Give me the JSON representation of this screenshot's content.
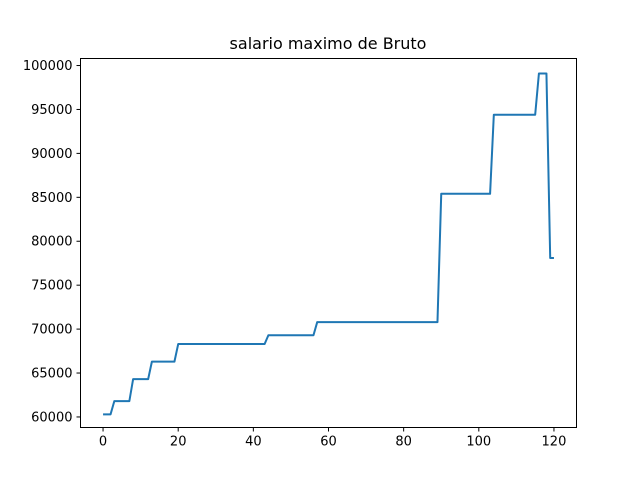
{
  "chart_data": {
    "type": "line",
    "title": "salario maximo de Bruto",
    "xlabel": "",
    "ylabel": "",
    "xlim": [
      -6,
      126
    ],
    "ylim": [
      58800,
      100800
    ],
    "xticks": [
      0,
      20,
      40,
      60,
      80,
      100,
      120
    ],
    "yticks": [
      60000,
      65000,
      70000,
      75000,
      80000,
      85000,
      90000,
      95000,
      100000
    ],
    "grid": false,
    "color": "#1f77b4",
    "series": [
      {
        "x": [
          0,
          2,
          3,
          7,
          8,
          12,
          13,
          19,
          20,
          43,
          44,
          56,
          57,
          89,
          90,
          103,
          104,
          115,
          116,
          118,
          119,
          120
        ],
        "values": [
          60300,
          60300,
          61800,
          61800,
          64300,
          64300,
          66300,
          66300,
          68300,
          68300,
          69300,
          69300,
          70800,
          70800,
          85400,
          85400,
          94400,
          94400,
          99100,
          99100,
          78100,
          78100
        ]
      }
    ]
  }
}
